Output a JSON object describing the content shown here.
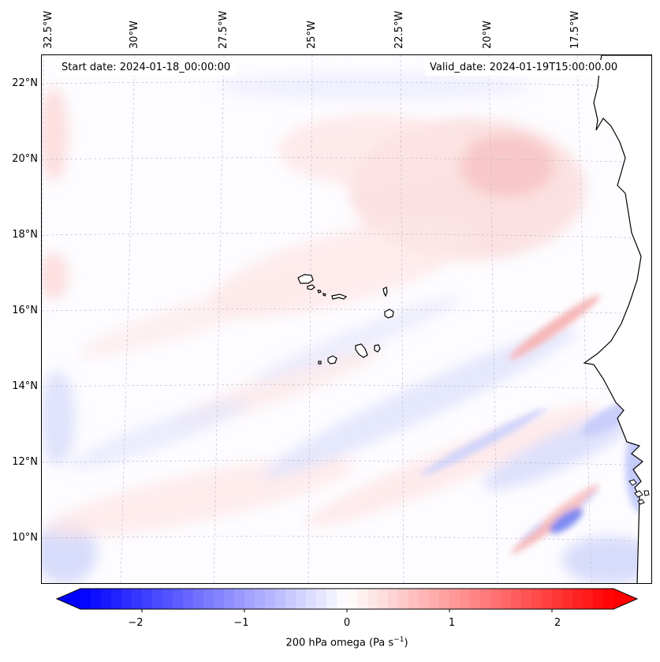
{
  "map": {
    "start_date": "Start date: 2024-01-18_00:00:00",
    "valid_date": "Valid_date: 2024-01-19T15:00:00.00",
    "lon_labels": [
      "32.5°W",
      "30°W",
      "27.5°W",
      "25°W",
      "22.5°W",
      "20°W",
      "17.5°W"
    ],
    "lat_labels": [
      "22°N",
      "20°N",
      "18°N",
      "16°N",
      "14°N",
      "12°N",
      "10°N"
    ],
    "land_color": "#ffffff",
    "coast_color": "#000000"
  },
  "colorbar": {
    "title_prefix": "200 hPa omega (Pa s",
    "title_exp": "−1",
    "title_suffix": ")",
    "ticks": [
      "−2",
      "−1",
      "0",
      "1",
      "2"
    ],
    "tick_values": [
      -2,
      -1,
      0,
      1,
      2
    ],
    "range": [
      -2.6,
      2.6
    ],
    "colors": {
      "negative": "#0000ff",
      "zero": "#ffffff",
      "positive": "#ff0000"
    }
  },
  "chart_data": {
    "type": "heatmap",
    "variable": "200 hPa omega",
    "units": "Pa s^-1",
    "colormap": "bwr",
    "vmin": -2.6,
    "vmax": 2.6,
    "lon_range": [
      -33,
      -15
    ],
    "lat_range": [
      9,
      22.5
    ]
  }
}
